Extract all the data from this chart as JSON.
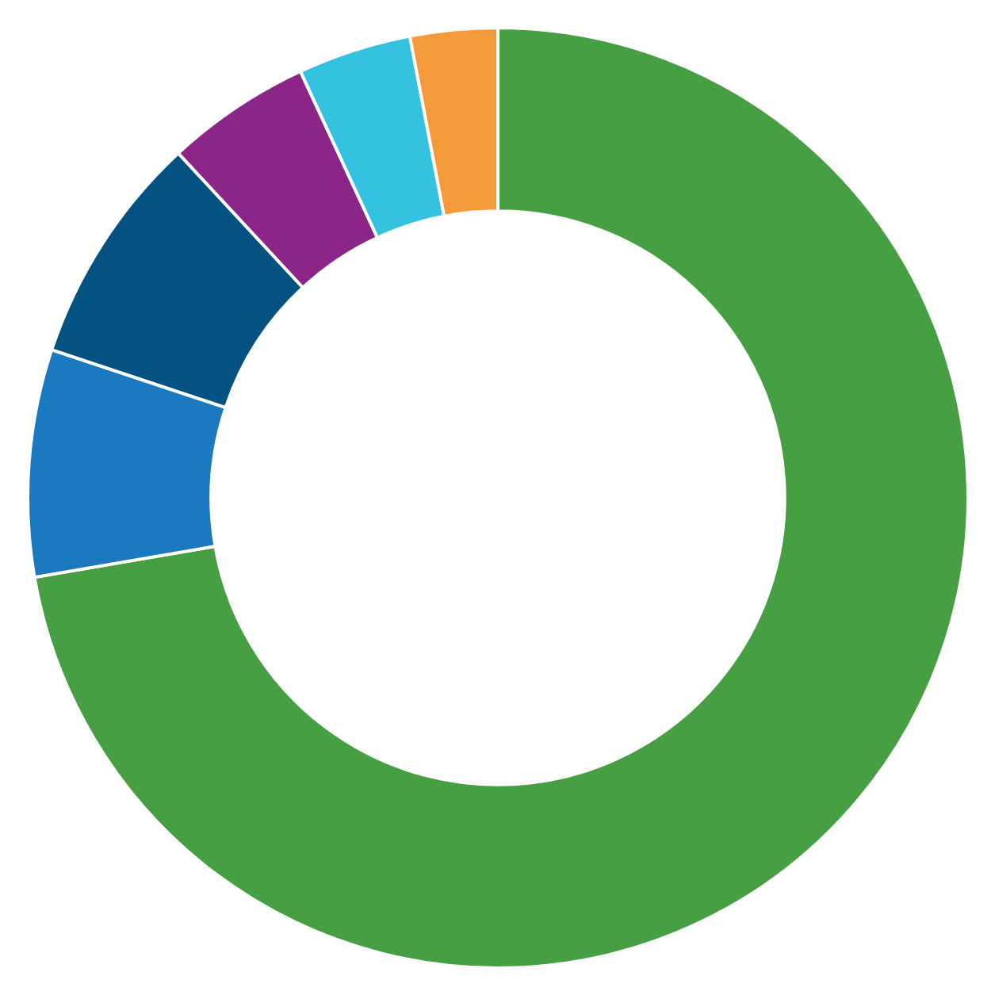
{
  "chart_data": {
    "type": "donut",
    "categories": [
      null,
      null,
      null,
      null,
      null,
      null
    ],
    "values": [
      72.3,
      7.8,
      8.0,
      5.0,
      3.9,
      3.0
    ],
    "colors": [
      "#479f44",
      "#1b79bf",
      "#045282",
      "#8b2688",
      "#35c2e1",
      "#f59a3a"
    ]
  }
}
